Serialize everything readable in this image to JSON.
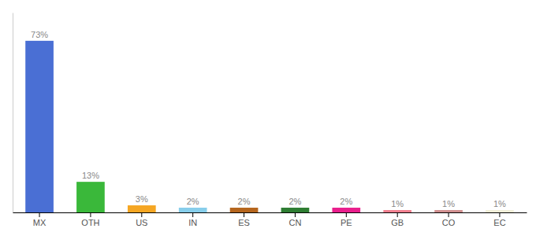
{
  "chart_data": {
    "type": "bar",
    "categories": [
      "MX",
      "OTH",
      "US",
      "IN",
      "ES",
      "CN",
      "PE",
      "GB",
      "CO",
      "EC"
    ],
    "values": [
      73,
      13,
      3,
      2,
      2,
      2,
      2,
      1,
      1,
      1
    ],
    "value_labels": [
      "73%",
      "13%",
      "3%",
      "2%",
      "2%",
      "2%",
      "2%",
      "1%",
      "1%",
      "1%"
    ],
    "colors": [
      "#4a6fd4",
      "#3ab83a",
      "#f5a623",
      "#87ceeb",
      "#b5651d",
      "#2e7d32",
      "#e91e8c",
      "#f08090",
      "#d09090",
      "#f0eed8"
    ],
    "ylim": [
      0,
      85
    ],
    "data_labels": true,
    "tick_labels": "x"
  }
}
